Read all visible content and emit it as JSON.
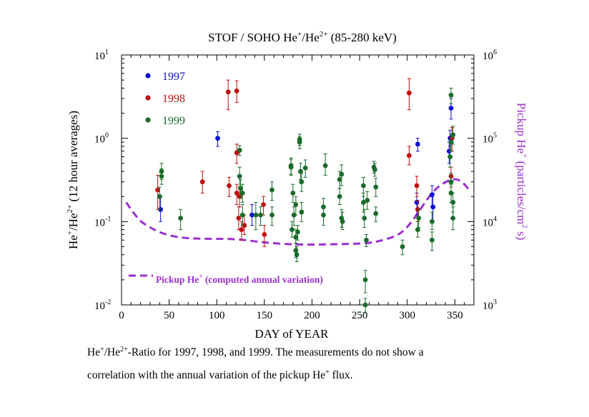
{
  "title": {
    "pre": "STOF / SOHO  He",
    "sup1": "+",
    "mid": "/He",
    "sup2": "2+",
    "post": " (85-280 keV)"
  },
  "caption": {
    "line1_a": "He",
    "line1_sup1": "+",
    "line1_b": "/He",
    "line1_sup2": "2+",
    "line1_c": "-Ratio for 1997, 1998, and 1999. The measurements do not show a",
    "line2_a": "correlation with the  annual variation of the pickup He",
    "line2_sup": "+",
    "line2_b": " flux."
  },
  "chart_data": {
    "type": "scatter",
    "xlabel": "DAY of YEAR",
    "ylabel_left": {
      "a": "He",
      "sup1": "+",
      "b": "/He",
      "sup2": "2+",
      "c": " (12 hour averages)"
    },
    "ylabel_right": {
      "a": "Pickup He",
      "sup1": "+",
      "b": " (particles/cm",
      "sup2": "2",
      "c": " s)"
    },
    "xlim": [
      0,
      370
    ],
    "ylim_left": [
      0.01,
      10
    ],
    "ylim_right": [
      1000,
      1000000
    ],
    "yscale": "log",
    "x_ticks": [
      0,
      50,
      100,
      150,
      200,
      250,
      300,
      350
    ],
    "y_left_ticks": [
      {
        "base": "10",
        "exp": "1"
      },
      {
        "base": "10",
        "exp": "0"
      },
      {
        "base": "10",
        "exp": "-1"
      },
      {
        "base": "10",
        "exp": "-2"
      }
    ],
    "y_right_ticks": [
      {
        "base": "10",
        "exp": "6"
      },
      {
        "base": "10",
        "exp": "5"
      },
      {
        "base": "10",
        "exp": "4"
      },
      {
        "base": "10",
        "exp": "3"
      }
    ],
    "legend_placement": "top-left",
    "annotation": {
      "a": "Pickup He",
      "sup": "+",
      "b": " (computed annual variation)"
    },
    "pickup_curve": {
      "color": "#9b30d0",
      "x": [
        5,
        12,
        20,
        30,
        40,
        55,
        70,
        90,
        120,
        150,
        180,
        210,
        240,
        260,
        275,
        290,
        300,
        310,
        320,
        330,
        340,
        350,
        358,
        365
      ],
      "y": [
        0.17,
        0.13,
        0.1,
        0.085,
        0.074,
        0.066,
        0.063,
        0.062,
        0.062,
        0.056,
        0.053,
        0.053,
        0.054,
        0.055,
        0.06,
        0.068,
        0.085,
        0.12,
        0.18,
        0.25,
        0.3,
        0.33,
        0.3,
        0.24
      ]
    },
    "series": [
      {
        "name": "1997",
        "color": "#1010d0",
        "points": [
          {
            "x": 41,
            "y": 0.14,
            "lo": 0.1,
            "hi": 0.2
          },
          {
            "x": 101,
            "y": 1.0,
            "lo": 0.8,
            "hi": 1.2
          },
          {
            "x": 137,
            "y": 0.12,
            "lo": 0.09,
            "hi": 0.16
          },
          {
            "x": 311,
            "y": 0.85,
            "lo": 0.7,
            "hi": 1.0
          },
          {
            "x": 310,
            "y": 0.17,
            "lo": 0.12,
            "hi": 0.22
          },
          {
            "x": 326,
            "y": 0.21,
            "lo": 0.15,
            "hi": 0.27
          },
          {
            "x": 327,
            "y": 0.15,
            "lo": 0.1,
            "hi": 0.22
          },
          {
            "x": 344,
            "y": 0.7,
            "lo": 0.5,
            "hi": 0.9
          },
          {
            "x": 345,
            "y": 1.0,
            "lo": 0.8,
            "hi": 1.25
          },
          {
            "x": 346,
            "y": 2.3,
            "lo": 1.7,
            "hi": 3.0
          }
        ]
      },
      {
        "name": "1998",
        "color": "#c01010",
        "points": [
          {
            "x": 38,
            "y": 0.24,
            "lo": 0.14,
            "hi": 0.36
          },
          {
            "x": 85,
            "y": 0.3,
            "lo": 0.22,
            "hi": 0.4
          },
          {
            "x": 112,
            "y": 3.6,
            "lo": 2.2,
            "hi": 5.0
          },
          {
            "x": 113,
            "y": 0.27,
            "lo": 0.2,
            "hi": 0.34
          },
          {
            "x": 121,
            "y": 3.7,
            "lo": 2.7,
            "hi": 4.9
          },
          {
            "x": 121,
            "y": 0.67,
            "lo": 0.5,
            "hi": 0.85
          },
          {
            "x": 121,
            "y": 0.22,
            "lo": 0.16,
            "hi": 0.28
          },
          {
            "x": 123,
            "y": 0.11,
            "lo": 0.08,
            "hi": 0.15
          },
          {
            "x": 124,
            "y": 0.2,
            "lo": 0.15,
            "hi": 0.26
          },
          {
            "x": 126,
            "y": 0.08,
            "lo": 0.06,
            "hi": 0.1
          },
          {
            "x": 129,
            "y": 0.09,
            "lo": 0.07,
            "hi": 0.12
          },
          {
            "x": 149,
            "y": 0.16,
            "lo": 0.12,
            "hi": 0.2
          },
          {
            "x": 150,
            "y": 0.07,
            "lo": 0.05,
            "hi": 0.09
          },
          {
            "x": 302,
            "y": 3.5,
            "lo": 2.2,
            "hi": 5.2
          },
          {
            "x": 302,
            "y": 0.62,
            "lo": 0.48,
            "hi": 0.8
          },
          {
            "x": 310,
            "y": 0.27,
            "lo": 0.2,
            "hi": 0.35
          },
          {
            "x": 311,
            "y": 0.14,
            "lo": 0.1,
            "hi": 0.18
          },
          {
            "x": 346,
            "y": 0.35,
            "lo": 0.26,
            "hi": 0.45
          },
          {
            "x": 347,
            "y": 1.0,
            "lo": 0.7,
            "hi": 1.35
          }
        ]
      },
      {
        "name": "1999",
        "color": "#1a6b2a",
        "points": [
          {
            "x": 40,
            "y": 0.2,
            "lo": 0.14,
            "hi": 0.26
          },
          {
            "x": 42,
            "y": 0.35,
            "lo": 0.28,
            "hi": 0.43
          },
          {
            "x": 42,
            "y": 0.4,
            "lo": 0.32,
            "hi": 0.5
          },
          {
            "x": 62,
            "y": 0.11,
            "lo": 0.08,
            "hi": 0.14
          },
          {
            "x": 124,
            "y": 0.72,
            "lo": 0.62,
            "hi": 0.82
          },
          {
            "x": 124,
            "y": 0.35,
            "lo": 0.26,
            "hi": 0.45
          },
          {
            "x": 125,
            "y": 0.25,
            "lo": 0.19,
            "hi": 0.32
          },
          {
            "x": 127,
            "y": 0.22,
            "lo": 0.17,
            "hi": 0.28
          },
          {
            "x": 127,
            "y": 0.12,
            "lo": 0.09,
            "hi": 0.16
          },
          {
            "x": 141,
            "y": 0.12,
            "lo": 0.08,
            "hi": 0.17
          },
          {
            "x": 146,
            "y": 0.12,
            "lo": 0.09,
            "hi": 0.15
          },
          {
            "x": 158,
            "y": 0.24,
            "lo": 0.18,
            "hi": 0.3
          },
          {
            "x": 158,
            "y": 0.12,
            "lo": 0.09,
            "hi": 0.15
          },
          {
            "x": 178,
            "y": 0.47,
            "lo": 0.37,
            "hi": 0.58
          },
          {
            "x": 178,
            "y": 0.45,
            "lo": 0.36,
            "hi": 0.56
          },
          {
            "x": 179,
            "y": 0.08,
            "lo": 0.065,
            "hi": 0.1
          },
          {
            "x": 180,
            "y": 0.22,
            "lo": 0.17,
            "hi": 0.28
          },
          {
            "x": 181,
            "y": 0.12,
            "lo": 0.09,
            "hi": 0.15
          },
          {
            "x": 183,
            "y": 0.16,
            "lo": 0.12,
            "hi": 0.2
          },
          {
            "x": 183,
            "y": 0.065,
            "lo": 0.055,
            "hi": 0.08
          },
          {
            "x": 183,
            "y": 0.045,
            "lo": 0.037,
            "hi": 0.055
          },
          {
            "x": 184,
            "y": 0.04,
            "lo": 0.033,
            "hi": 0.05
          },
          {
            "x": 185,
            "y": 0.075,
            "lo": 0.06,
            "hi": 0.09
          },
          {
            "x": 187,
            "y": 0.97,
            "lo": 0.82,
            "hi": 1.12
          },
          {
            "x": 187,
            "y": 0.9,
            "lo": 0.75,
            "hi": 1.05
          },
          {
            "x": 188,
            "y": 0.4,
            "lo": 0.32,
            "hi": 0.5
          },
          {
            "x": 189,
            "y": 0.3,
            "lo": 0.23,
            "hi": 0.38
          },
          {
            "x": 189,
            "y": 0.13,
            "lo": 0.1,
            "hi": 0.17
          },
          {
            "x": 193,
            "y": 0.44,
            "lo": 0.34,
            "hi": 0.55
          },
          {
            "x": 212,
            "y": 0.15,
            "lo": 0.12,
            "hi": 0.19
          },
          {
            "x": 212,
            "y": 0.12,
            "lo": 0.09,
            "hi": 0.15
          },
          {
            "x": 214,
            "y": 0.47,
            "lo": 0.36,
            "hi": 0.65
          },
          {
            "x": 229,
            "y": 0.32,
            "lo": 0.25,
            "hi": 0.4
          },
          {
            "x": 229,
            "y": 0.2,
            "lo": 0.16,
            "hi": 0.25
          },
          {
            "x": 231,
            "y": 0.37,
            "lo": 0.27,
            "hi": 0.48
          },
          {
            "x": 231,
            "y": 0.11,
            "lo": 0.085,
            "hi": 0.14
          },
          {
            "x": 232,
            "y": 0.1,
            "lo": 0.08,
            "hi": 0.13
          },
          {
            "x": 254,
            "y": 0.27,
            "lo": 0.2,
            "hi": 0.34
          },
          {
            "x": 254,
            "y": 0.17,
            "lo": 0.13,
            "hi": 0.22
          },
          {
            "x": 255,
            "y": 0.11,
            "lo": 0.085,
            "hi": 0.14
          },
          {
            "x": 256,
            "y": 0.02,
            "lo": 0.014,
            "hi": 0.026
          },
          {
            "x": 256,
            "y": 0.01,
            "lo": 0.008,
            "hi": 0.012
          },
          {
            "x": 257,
            "y": 0.06,
            "lo": 0.05,
            "hi": 0.07
          },
          {
            "x": 258,
            "y": 0.18,
            "lo": 0.14,
            "hi": 0.23
          },
          {
            "x": 265,
            "y": 0.45,
            "lo": 0.38,
            "hi": 0.53
          },
          {
            "x": 266,
            "y": 0.42,
            "lo": 0.35,
            "hi": 0.5
          },
          {
            "x": 267,
            "y": 0.26,
            "lo": 0.2,
            "hi": 0.33
          },
          {
            "x": 267,
            "y": 0.125,
            "lo": 0.1,
            "hi": 0.15
          },
          {
            "x": 295,
            "y": 0.05,
            "lo": 0.04,
            "hi": 0.06
          },
          {
            "x": 311,
            "y": 0.08,
            "lo": 0.065,
            "hi": 0.1
          },
          {
            "x": 312,
            "y": 0.11,
            "lo": 0.085,
            "hi": 0.14
          },
          {
            "x": 326,
            "y": 0.06,
            "lo": 0.045,
            "hi": 0.075
          },
          {
            "x": 326,
            "y": 0.1,
            "lo": 0.08,
            "hi": 0.13
          },
          {
            "x": 345,
            "y": 0.6,
            "lo": 0.45,
            "hi": 0.8
          },
          {
            "x": 346,
            "y": 3.3,
            "lo": 2.6,
            "hi": 4.0
          },
          {
            "x": 346,
            "y": 0.9,
            "lo": 0.7,
            "hi": 1.1
          },
          {
            "x": 346,
            "y": 0.22,
            "lo": 0.17,
            "hi": 0.28
          },
          {
            "x": 346,
            "y": 0.3,
            "lo": 0.23,
            "hi": 0.38
          },
          {
            "x": 348,
            "y": 0.17,
            "lo": 0.13,
            "hi": 0.22
          },
          {
            "x": 348,
            "y": 0.11,
            "lo": 0.08,
            "hi": 0.15
          },
          {
            "x": 348,
            "y": 1.1,
            "lo": 0.85,
            "hi": 1.4
          }
        ]
      }
    ]
  }
}
